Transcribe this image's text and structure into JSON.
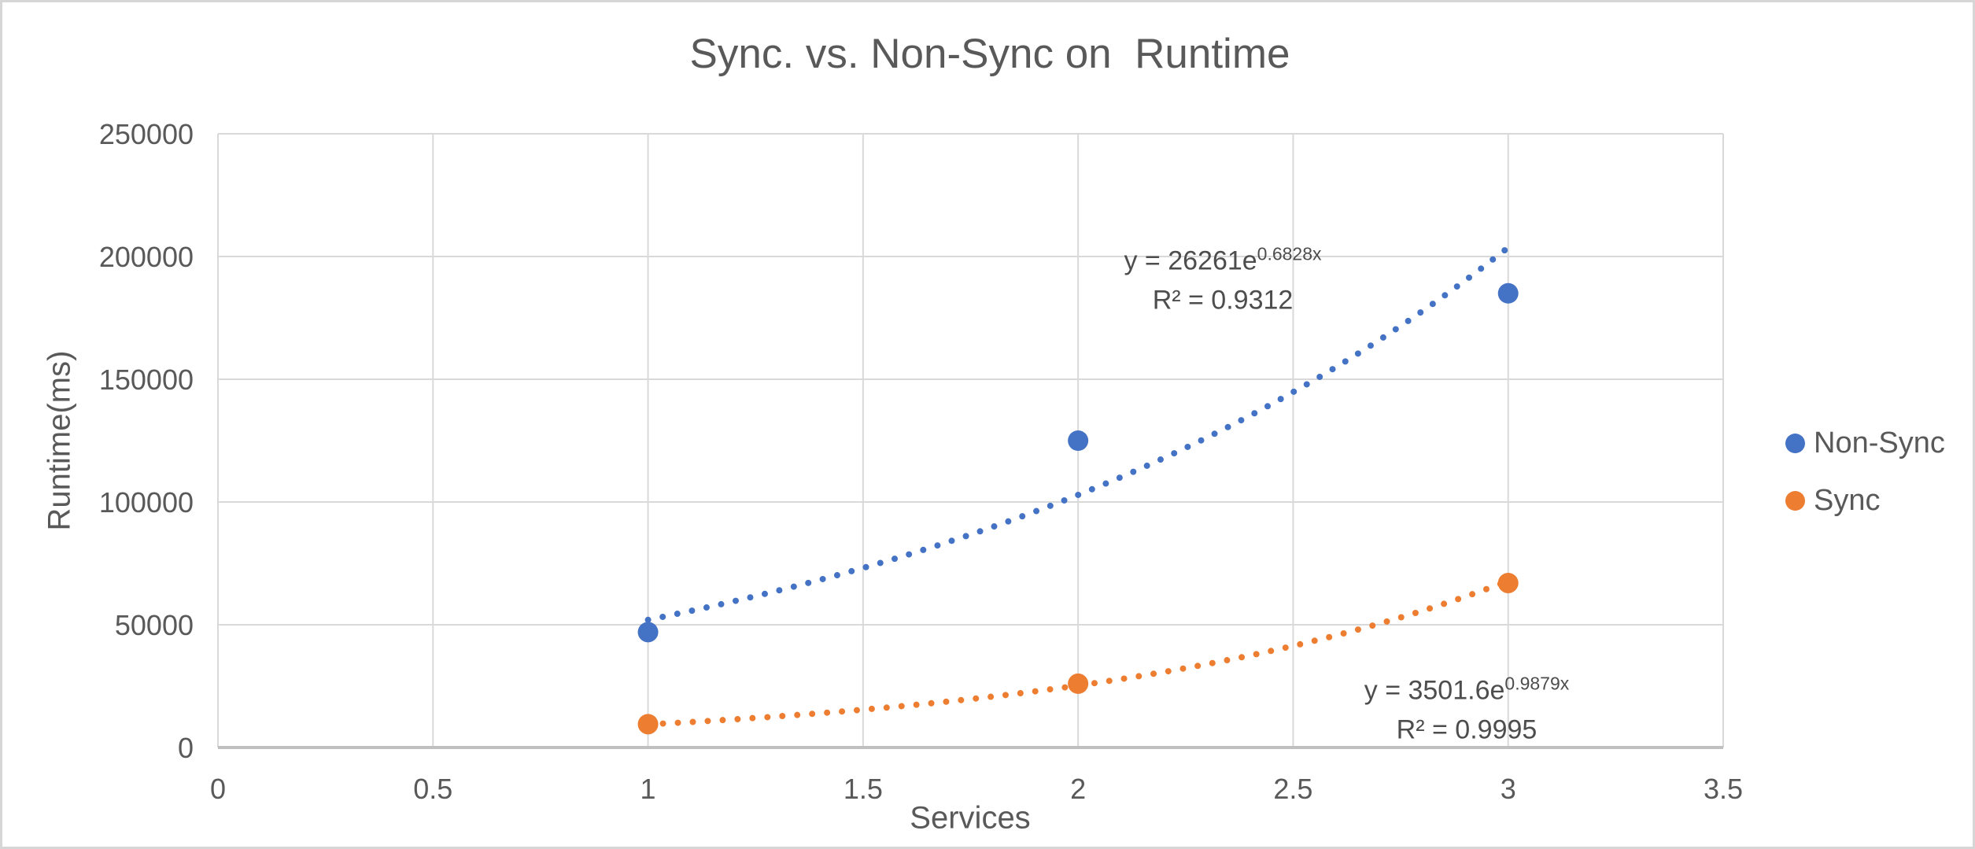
{
  "window": {
    "background": "#ffffff",
    "border_color": "#d6d6d6"
  },
  "chart_data": {
    "type": "scatter",
    "title": "Sync. vs. Non-Sync on  Runtime",
    "xlabel": "Services",
    "ylabel": "Runtime(ms)",
    "xlim": [
      0,
      3.5
    ],
    "ylim": [
      0,
      250000
    ],
    "xticks": [
      "0",
      "0.5",
      "1",
      "1.5",
      "2",
      "2.5",
      "3",
      "3.5"
    ],
    "yticks": [
      "0",
      "50000",
      "100000",
      "150000",
      "200000",
      "250000"
    ],
    "grid": true,
    "gridline_color": "#d9d9d9",
    "axis_line_color": "#c0c0c0",
    "text_color": "#595959",
    "legend_position": "right",
    "series": [
      {
        "name": "Non-Sync",
        "color": "#4472c4",
        "points": [
          {
            "x": 1,
            "y": 47000
          },
          {
            "x": 2,
            "y": 125000
          },
          {
            "x": 3,
            "y": 185000
          }
        ],
        "trendline": {
          "type": "exponential",
          "coef_a": 26261,
          "coef_b": 0.6828,
          "r_squared": 0.9312,
          "x_start": 1,
          "x_end": 3,
          "equation_base": "y = 26261e",
          "equation_exponent": "0.6828x",
          "r2_label": "R² = 0.9312"
        }
      },
      {
        "name": "Sync",
        "color": "#ed7d31",
        "points": [
          {
            "x": 1,
            "y": 9500
          },
          {
            "x": 2,
            "y": 26000
          },
          {
            "x": 3,
            "y": 67000
          }
        ],
        "trendline": {
          "type": "exponential",
          "coef_a": 3501.6,
          "coef_b": 0.9879,
          "r_squared": 0.9995,
          "x_start": 1,
          "x_end": 3,
          "equation_base": "y = 3501.6e",
          "equation_exponent": "0.9879x",
          "r2_label": "R² = 0.9995"
        }
      }
    ]
  }
}
